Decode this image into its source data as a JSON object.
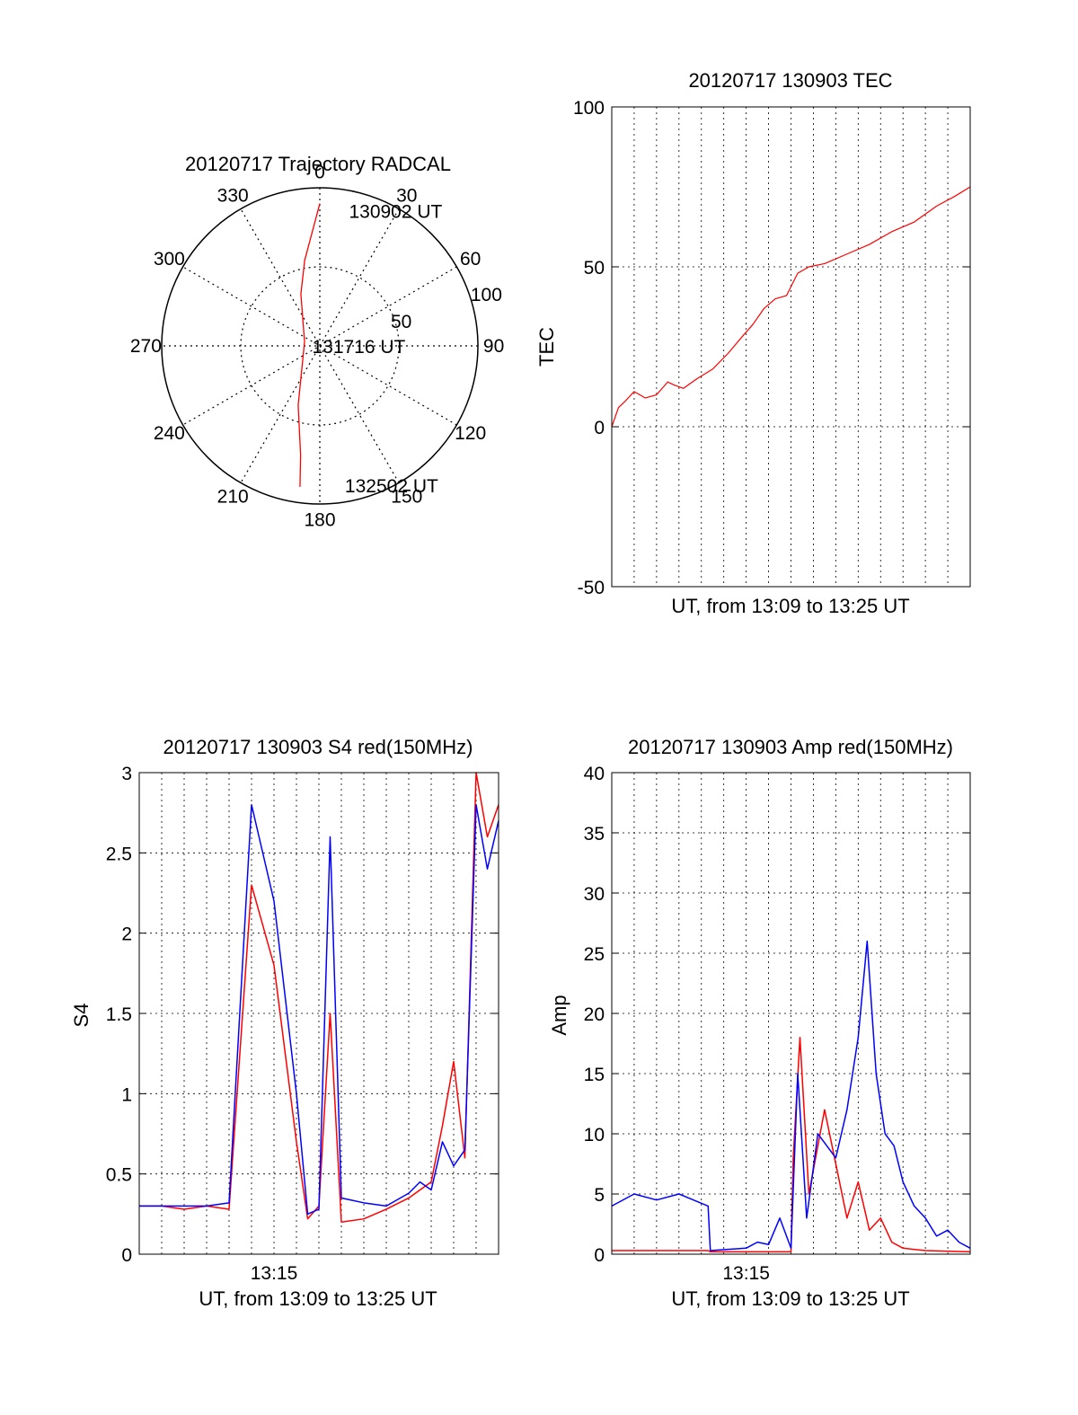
{
  "chart_data": [
    {
      "type": "polar",
      "title": "20120717 Trajectory RADCAL",
      "angle_ticks": [
        "0",
        "30",
        "60",
        "90",
        "120",
        "150",
        "180",
        "210",
        "240",
        "270",
        "300",
        "330"
      ],
      "angle_tick_degrees": [
        0,
        30,
        60,
        90,
        120,
        150,
        180,
        210,
        240,
        270,
        300,
        330
      ],
      "radial_ticks": [
        "50",
        "100"
      ],
      "radial_tick_values": [
        50,
        100
      ],
      "rmax": 100,
      "grid": true,
      "series": [
        {
          "color": "#ff0000",
          "points": [
            [
              0,
              90
            ],
            [
              -10,
              55
            ],
            [
              -20,
              35
            ],
            [
              -75,
              10
            ],
            [
              -160,
              40
            ],
            [
              -170,
              70
            ],
            [
              -172,
              90
            ]
          ]
        }
      ],
      "annotations": [
        {
          "text": "130902 UT",
          "r": 88,
          "theta": 14
        },
        {
          "text": "131716 UT",
          "r": 2,
          "theta": 270
        },
        {
          "text": "132502 UT",
          "r": 90,
          "theta": 168
        }
      ]
    },
    {
      "type": "line",
      "title": "20120717 130903 TEC",
      "xlabel": "UT, from 13:09 to 13:25 UT",
      "ylabel": "TEC",
      "xlim": [
        0,
        16
      ],
      "ylim": [
        -50,
        100
      ],
      "yticks": [
        -50,
        0,
        50,
        100
      ],
      "grid": true,
      "series": [
        {
          "color": "#ff0000",
          "x": [
            0,
            0.3,
            0.6,
            1.0,
            1.5,
            2.0,
            2.5,
            2.8,
            3.2,
            3.8,
            4.5,
            5.2,
            5.8,
            6.3,
            6.8,
            7.3,
            7.8,
            8.3,
            8.8,
            9.5,
            10.5,
            11.5,
            12.5,
            13.5,
            14.5,
            15.3,
            16.0
          ],
          "y": [
            0,
            6,
            8,
            11,
            9,
            10,
            14,
            13,
            12,
            15,
            18,
            23,
            28,
            32,
            37,
            40,
            41,
            48,
            50,
            51,
            54,
            57,
            61,
            64,
            69,
            72,
            75
          ]
        }
      ]
    },
    {
      "type": "line",
      "title": "20120717 130903 S4 red(150MHz)",
      "xlabel": "UT, from 13:09 to 13:25 UT",
      "ylabel": "S4",
      "xlim": [
        0,
        16
      ],
      "ylim": [
        0,
        3
      ],
      "yticks": [
        0,
        0.5,
        1,
        1.5,
        2,
        2.5,
        3
      ],
      "xticks": [
        6
      ],
      "xticklabels": [
        "13:15"
      ],
      "grid": true,
      "series": [
        {
          "color": "#ff0000",
          "x": [
            0,
            1,
            2,
            3,
            4,
            5,
            6,
            7,
            7.5,
            8,
            8.5,
            9,
            10,
            11,
            12,
            12.5,
            13,
            13.5,
            14,
            14.5,
            15,
            15.5,
            16
          ],
          "y": [
            0.3,
            0.3,
            0.28,
            0.3,
            0.28,
            2.3,
            1.8,
            0.7,
            0.22,
            0.3,
            1.5,
            0.2,
            0.22,
            0.28,
            0.35,
            0.4,
            0.45,
            0.8,
            1.2,
            0.6,
            3,
            2.6,
            2.8
          ]
        },
        {
          "color": "#0000ff",
          "x": [
            0,
            1,
            2,
            3,
            4,
            5,
            6,
            7,
            7.5,
            8,
            8.5,
            9,
            10,
            11,
            12,
            12.5,
            13,
            13.5,
            14,
            14.5,
            15,
            15.5,
            16
          ],
          "y": [
            0.3,
            0.3,
            0.3,
            0.3,
            0.32,
            2.8,
            2.2,
            1.0,
            0.25,
            0.28,
            2.6,
            0.35,
            0.32,
            0.3,
            0.38,
            0.45,
            0.4,
            0.7,
            0.55,
            0.65,
            2.8,
            2.4,
            2.7
          ]
        }
      ]
    },
    {
      "type": "line",
      "title": "20120717 130903 Amp red(150MHz)",
      "xlabel": "UT, from 13:09 to 13:25 UT",
      "ylabel": "Amp",
      "xlim": [
        0,
        16
      ],
      "ylim": [
        0,
        40
      ],
      "yticks": [
        0,
        5,
        10,
        15,
        20,
        25,
        30,
        35,
        40
      ],
      "xticks": [
        6
      ],
      "xticklabels": [
        "13:15"
      ],
      "grid": true,
      "series": [
        {
          "color": "#ff0000",
          "x": [
            0,
            2,
            4.3,
            4.4,
            6,
            8,
            8.1,
            8.4,
            8.8,
            9.5,
            10.5,
            11,
            11.5,
            12,
            12.5,
            13,
            14,
            16
          ],
          "y": [
            0.3,
            0.3,
            0.3,
            0.2,
            0.2,
            0.2,
            8,
            18,
            5,
            12,
            3,
            6,
            2,
            3,
            1,
            0.5,
            0.3,
            0.2
          ]
        },
        {
          "color": "#0000ff",
          "x": [
            0,
            1,
            2,
            3,
            4.3,
            4.4,
            6,
            6.5,
            7,
            7.5,
            8,
            8.3,
            8.7,
            9.2,
            10,
            10.5,
            11,
            11.4,
            11.8,
            12.2,
            12.6,
            13,
            13.5,
            14,
            14.5,
            15,
            15.5,
            16
          ],
          "y": [
            4,
            5,
            4.5,
            5,
            4,
            0.3,
            0.5,
            1,
            0.8,
            3,
            0.5,
            15,
            3,
            10,
            8,
            12,
            18,
            26,
            15,
            10,
            9,
            6,
            4,
            3,
            1.5,
            2,
            1,
            0.5
          ]
        }
      ]
    }
  ]
}
